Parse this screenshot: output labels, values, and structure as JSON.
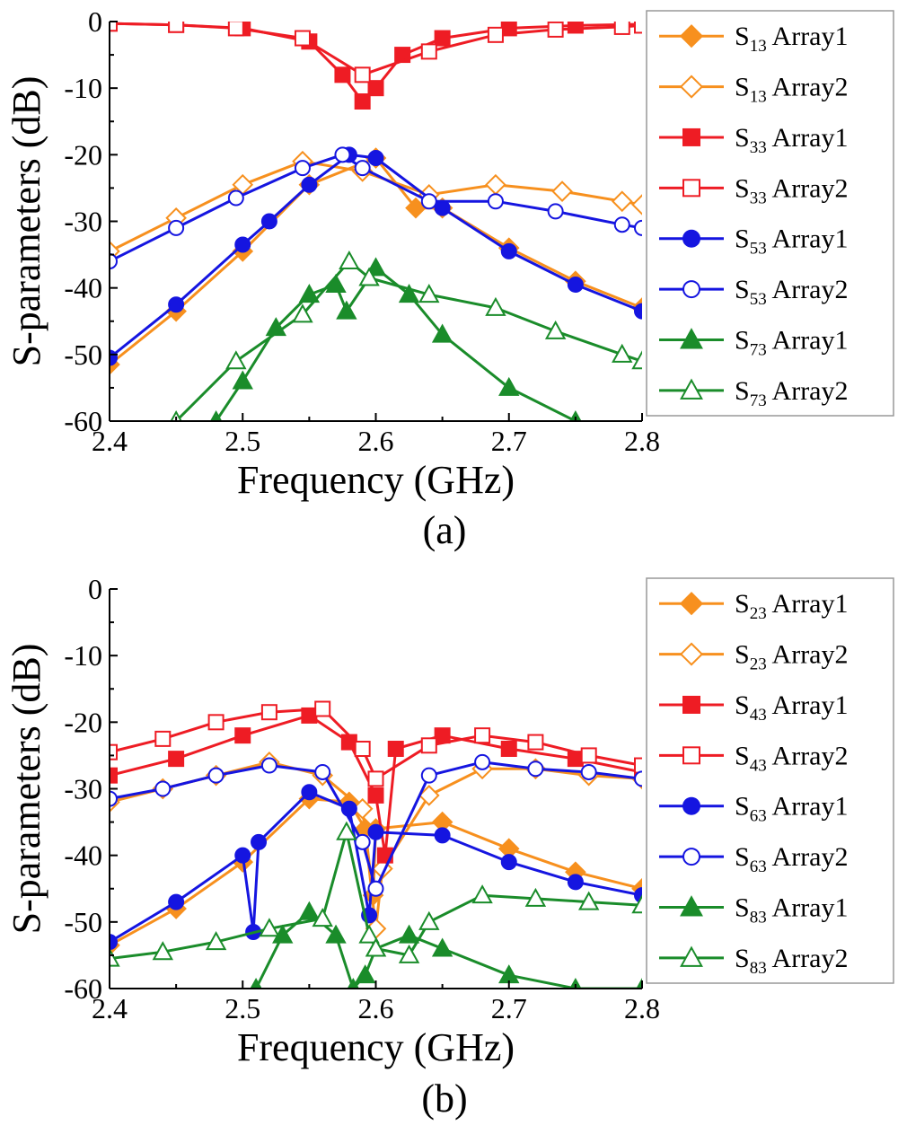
{
  "chart_data": [
    {
      "panel_label": "(a)",
      "type": "line",
      "xlabel": "Frequency (GHz)",
      "ylabel": "S-parameters (dB)",
      "xlim": [
        2.4,
        2.8
      ],
      "ylim": [
        -60,
        0
      ],
      "xticks": [
        "2.4",
        "2.5",
        "2.6",
        "2.7",
        "2.8"
      ],
      "yticks": [
        "0",
        "-10",
        "-20",
        "-30",
        "-40",
        "-50",
        "-60"
      ],
      "legend_position": "right",
      "series": [
        {
          "sub": "13",
          "tag": "Array1",
          "color": "#f7901e",
          "marker": "diamond",
          "filled": true,
          "x": [
            2.4,
            2.45,
            2.5,
            2.55,
            2.6,
            2.63,
            2.65,
            2.7,
            2.75,
            2.8
          ],
          "y": [
            -51.5,
            -43.5,
            -34.5,
            -24.5,
            -20.5,
            -28,
            -28,
            -34,
            -39,
            -43
          ]
        },
        {
          "sub": "13",
          "tag": "Array2",
          "color": "#f7901e",
          "marker": "diamond",
          "filled": false,
          "x": [
            2.4,
            2.45,
            2.5,
            2.545,
            2.59,
            2.64,
            2.69,
            2.74,
            2.785,
            2.8
          ],
          "y": [
            -34.5,
            -29.5,
            -24.5,
            -21,
            -22.5,
            -26,
            -24.5,
            -25.5,
            -27,
            -27.5
          ]
        },
        {
          "sub": "33",
          "tag": "Array1",
          "color": "#ee1c24",
          "marker": "square",
          "filled": true,
          "x": [
            2.4,
            2.45,
            2.5,
            2.55,
            2.575,
            2.59,
            2.6,
            2.62,
            2.65,
            2.7,
            2.75,
            2.8
          ],
          "y": [
            -0.3,
            -0.5,
            -1,
            -3,
            -8,
            -12,
            -10,
            -5,
            -2.5,
            -1,
            -0.6,
            -0.4
          ]
        },
        {
          "sub": "33",
          "tag": "Array2",
          "color": "#ee1c24",
          "marker": "square",
          "filled": false,
          "x": [
            2.4,
            2.45,
            2.495,
            2.545,
            2.59,
            2.64,
            2.69,
            2.735,
            2.785,
            2.8
          ],
          "y": [
            -0.3,
            -0.5,
            -1,
            -2.5,
            -8,
            -4.5,
            -2,
            -1.2,
            -0.8,
            -0.6
          ]
        },
        {
          "sub": "53",
          "tag": "Array1",
          "color": "#1515e0",
          "marker": "circle",
          "filled": true,
          "x": [
            2.4,
            2.45,
            2.5,
            2.52,
            2.55,
            2.58,
            2.6,
            2.65,
            2.7,
            2.75,
            2.8
          ],
          "y": [
            -50.5,
            -42.5,
            -33.5,
            -30,
            -24.5,
            -20,
            -20.5,
            -28,
            -34.5,
            -39.5,
            -43.5
          ]
        },
        {
          "sub": "53",
          "tag": "Array2",
          "color": "#1515e0",
          "marker": "circle",
          "filled": false,
          "x": [
            2.4,
            2.45,
            2.495,
            2.545,
            2.575,
            2.59,
            2.64,
            2.69,
            2.735,
            2.785,
            2.8
          ],
          "y": [
            -36,
            -31,
            -26.5,
            -22,
            -20,
            -22,
            -27,
            -27,
            -28.5,
            -30.5,
            -31
          ]
        },
        {
          "sub": "73",
          "tag": "Array1",
          "color": "#1a8c2a",
          "marker": "triangle",
          "filled": true,
          "x": [
            2.48,
            2.5,
            2.525,
            2.55,
            2.57,
            2.578,
            2.6,
            2.625,
            2.65,
            2.7,
            2.75
          ],
          "y": [
            -60,
            -54,
            -46,
            -41,
            -39.5,
            -43.5,
            -37,
            -41,
            -47,
            -55,
            -60
          ]
        },
        {
          "sub": "73",
          "tag": "Array2",
          "color": "#1a8c2a",
          "marker": "triangle",
          "filled": false,
          "x": [
            2.45,
            2.495,
            2.545,
            2.58,
            2.595,
            2.64,
            2.69,
            2.735,
            2.785,
            2.8
          ],
          "y": [
            -60,
            -51,
            -44,
            -36,
            -38.5,
            -41,
            -43,
            -46.5,
            -50,
            -51
          ]
        }
      ]
    },
    {
      "panel_label": "(b)",
      "type": "line",
      "xlabel": "Frequency (GHz)",
      "ylabel": "S-parameters (dB)",
      "xlim": [
        2.4,
        2.8
      ],
      "ylim": [
        -60,
        0
      ],
      "xticks": [
        "2.4",
        "2.5",
        "2.6",
        "2.7",
        "2.8"
      ],
      "yticks": [
        "0",
        "-10",
        "-20",
        "-30",
        "-40",
        "-50",
        "-60"
      ],
      "legend_position": "right",
      "series": [
        {
          "sub": "23",
          "tag": "Array1",
          "color": "#f7901e",
          "marker": "diamond",
          "filled": true,
          "x": [
            2.4,
            2.45,
            2.5,
            2.55,
            2.58,
            2.592,
            2.598,
            2.6,
            2.65,
            2.7,
            2.75,
            2.8
          ],
          "y": [
            -53.5,
            -48,
            -41,
            -31.5,
            -32,
            -36,
            -46,
            -36,
            -35,
            -39,
            -42.5,
            -45
          ]
        },
        {
          "sub": "23",
          "tag": "Array2",
          "color": "#f7901e",
          "marker": "diamond",
          "filled": false,
          "x": [
            2.4,
            2.44,
            2.48,
            2.52,
            2.56,
            2.59,
            2.6,
            2.605,
            2.64,
            2.68,
            2.72,
            2.76,
            2.8
          ],
          "y": [
            -32,
            -30,
            -28,
            -26,
            -28,
            -33,
            -51,
            -42,
            -31,
            -27,
            -27,
            -28,
            -28.5
          ]
        },
        {
          "sub": "43",
          "tag": "Array1",
          "color": "#ee1c24",
          "marker": "square",
          "filled": true,
          "x": [
            2.4,
            2.45,
            2.5,
            2.55,
            2.58,
            2.6,
            2.607,
            2.615,
            2.65,
            2.7,
            2.75,
            2.8
          ],
          "y": [
            -28,
            -25.5,
            -22,
            -19,
            -23,
            -31,
            -40,
            -24,
            -22,
            -24,
            -25.5,
            -27.5
          ]
        },
        {
          "sub": "43",
          "tag": "Array2",
          "color": "#ee1c24",
          "marker": "square",
          "filled": false,
          "x": [
            2.4,
            2.44,
            2.48,
            2.52,
            2.56,
            2.59,
            2.6,
            2.64,
            2.68,
            2.72,
            2.76,
            2.8
          ],
          "y": [
            -24.5,
            -22.5,
            -20,
            -18.5,
            -18,
            -24,
            -28.5,
            -23.5,
            -22,
            -23,
            -25,
            -26.5
          ]
        },
        {
          "sub": "63",
          "tag": "Array1",
          "color": "#1515e0",
          "marker": "circle",
          "filled": true,
          "x": [
            2.4,
            2.45,
            2.5,
            2.508,
            2.512,
            2.55,
            2.58,
            2.595,
            2.6,
            2.65,
            2.7,
            2.75,
            2.8
          ],
          "y": [
            -53,
            -47,
            -40,
            -51.5,
            -38,
            -30.5,
            -33,
            -49,
            -36.5,
            -37,
            -41,
            -44,
            -46
          ]
        },
        {
          "sub": "63",
          "tag": "Array2",
          "color": "#1515e0",
          "marker": "circle",
          "filled": false,
          "x": [
            2.4,
            2.44,
            2.48,
            2.52,
            2.56,
            2.59,
            2.6,
            2.64,
            2.68,
            2.72,
            2.76,
            2.8
          ],
          "y": [
            -31.5,
            -30,
            -28,
            -26.5,
            -27.5,
            -38,
            -45,
            -28,
            -26,
            -27,
            -27.5,
            -28.5
          ]
        },
        {
          "sub": "83",
          "tag": "Array1",
          "color": "#1a8c2a",
          "marker": "triangle",
          "filled": true,
          "x": [
            2.51,
            2.53,
            2.55,
            2.57,
            2.583,
            2.592,
            2.6,
            2.625,
            2.65,
            2.7,
            2.75,
            2.8
          ],
          "y": [
            -60,
            -52,
            -48.5,
            -52,
            -60,
            -58,
            -54,
            -52,
            -54,
            -58,
            -60,
            -60
          ]
        },
        {
          "sub": "83",
          "tag": "Array2",
          "color": "#1a8c2a",
          "marker": "triangle",
          "filled": false,
          "x": [
            2.4,
            2.44,
            2.48,
            2.52,
            2.56,
            2.578,
            2.595,
            2.6,
            2.625,
            2.64,
            2.68,
            2.72,
            2.76,
            2.8
          ],
          "y": [
            -55.5,
            -54.5,
            -53,
            -51,
            -49.5,
            -36.5,
            -52,
            -54,
            -55,
            -50,
            -46,
            -46.5,
            -47,
            -47.5
          ]
        }
      ]
    }
  ]
}
